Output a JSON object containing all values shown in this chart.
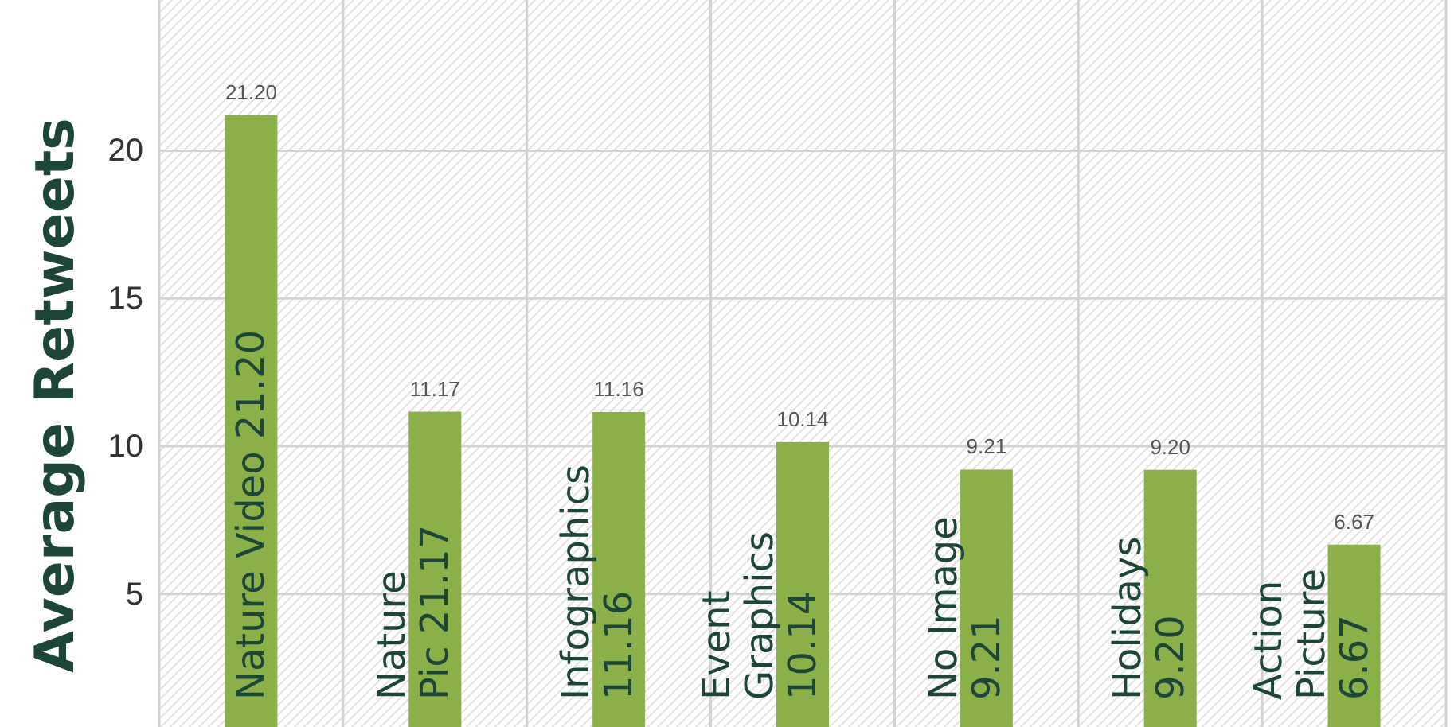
{
  "chart_data": {
    "type": "bar",
    "ylabel": "Average Retweets",
    "categories": [
      "Nature Video 21.20",
      "Nature\nPic 21.17",
      "Infographics\n11.16",
      "Event\nGraphics\n10.14",
      "No Image\n9.21",
      "Holidays\n9.20",
      "Action\nPicture\n6.67"
    ],
    "values": [
      21.2,
      11.17,
      11.16,
      10.14,
      9.21,
      9.2,
      6.67
    ],
    "color": "#8bb04a",
    "value_labels": [
      "21.20",
      "11.17",
      "11.16",
      "10.14",
      "9.21",
      "9.20",
      "6.67"
    ],
    "ylim": [
      0.5,
      25.1
    ],
    "yticks": [
      5,
      10,
      15,
      20
    ],
    "grid": true
  }
}
